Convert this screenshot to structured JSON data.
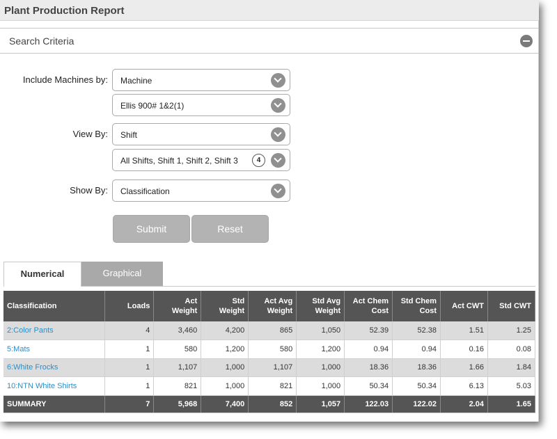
{
  "title": "Plant Production Report",
  "search_criteria": {
    "label": "Search Criteria"
  },
  "form": {
    "include_machines_label": "Include Machines by:",
    "machine_type_value": "Machine",
    "machine_value": "Ellis 900# 1&2(1)",
    "view_by_label": "View By:",
    "view_by_value": "Shift",
    "shifts_value": "All Shifts, Shift 1, Shift 2, Shift 3",
    "shifts_count": "4",
    "show_by_label": "Show By:",
    "show_by_value": "Classification",
    "submit_label": "Submit",
    "reset_label": "Reset"
  },
  "tabs": [
    {
      "label": "Numerical",
      "active": true
    },
    {
      "label": "Graphical",
      "active": false
    }
  ],
  "table": {
    "headers": [
      "Classification",
      "Loads",
      "Act Weight",
      "Std Weight",
      "Act Avg Weight",
      "Std Avg Weight",
      "Act Chem Cost",
      "Std Chem Cost",
      "Act CWT",
      "Std CWT"
    ],
    "rows": [
      [
        "2:Color Pants",
        "4",
        "3,460",
        "4,200",
        "865",
        "1,050",
        "52.39",
        "52.38",
        "1.51",
        "1.25"
      ],
      [
        "5:Mats",
        "1",
        "580",
        "1,200",
        "580",
        "1,200",
        "0.94",
        "0.94",
        "0.16",
        "0.08"
      ],
      [
        "6:White Frocks",
        "1",
        "1,107",
        "1,000",
        "1,107",
        "1,000",
        "18.36",
        "18.36",
        "1.66",
        "1.84"
      ],
      [
        "10:NTN White Shirts",
        "1",
        "821",
        "1,000",
        "821",
        "1,000",
        "50.34",
        "50.34",
        "6.13",
        "5.03"
      ]
    ],
    "summary": [
      "SUMMARY",
      "7",
      "5,968",
      "7,400",
      "852",
      "1,057",
      "122.03",
      "122.02",
      "2.04",
      "1.65"
    ]
  },
  "colors": {
    "header_bg": "#555555",
    "link": "#2b8ec9",
    "button": "#b3b3b3",
    "row_alt": "#dcdcdc"
  }
}
